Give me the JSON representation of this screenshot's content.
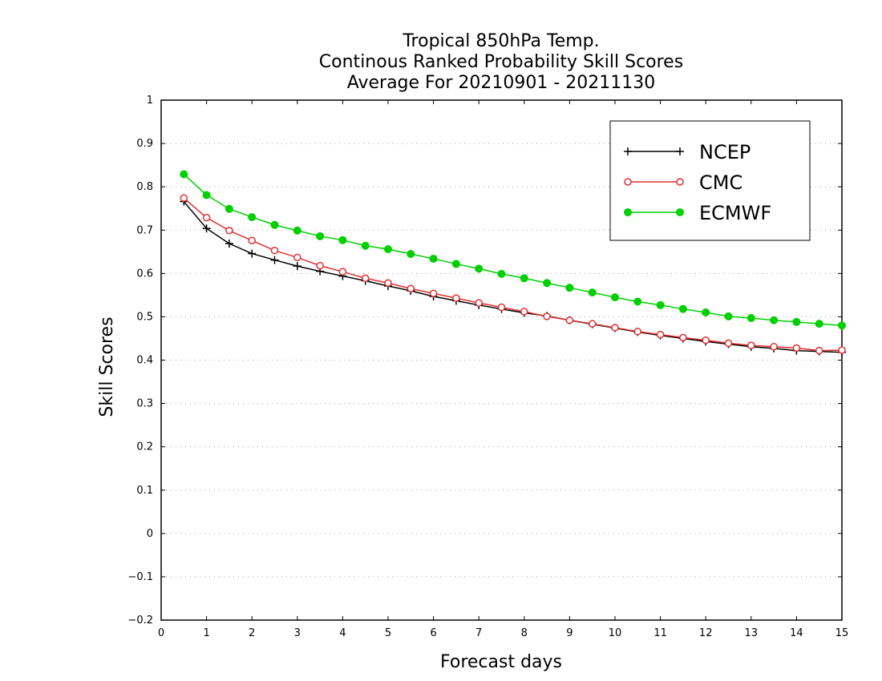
{
  "chart_data": {
    "type": "line",
    "title": [
      "Tropical 850hPa Temp.",
      "Continous Ranked Probability Skill Scores",
      "Average For 20210901 - 20211130"
    ],
    "xlabel": "Forecast days",
    "ylabel": "Skill Scores",
    "xlim": [
      0,
      15
    ],
    "ylim": [
      -0.2,
      1
    ],
    "xticks": [
      "0",
      "1",
      "2",
      "3",
      "4",
      "5",
      "6",
      "7",
      "8",
      "9",
      "10",
      "11",
      "12",
      "13",
      "14",
      "15"
    ],
    "yticks": [
      "−0.2",
      "−0.1",
      "0",
      "0.1",
      "0.2",
      "0.3",
      "0.4",
      "0.5",
      "0.6",
      "0.7",
      "0.8",
      "0.9",
      "1"
    ],
    "grid": "horizontal dotted",
    "legend_position": "top-right",
    "x": [
      0.5,
      1,
      1.5,
      2,
      2.5,
      3,
      3.5,
      4,
      4.5,
      5,
      5.5,
      6,
      6.5,
      7,
      7.5,
      8,
      8.5,
      9,
      9.5,
      10,
      10.5,
      11,
      11.5,
      12,
      12.5,
      13,
      13.5,
      14,
      14.5,
      15
    ],
    "series": [
      {
        "name": "NCEP",
        "color": "#000000",
        "marker": "plus",
        "values": [
          0.766,
          0.704,
          0.669,
          0.646,
          0.631,
          0.617,
          0.605,
          0.594,
          0.583,
          0.571,
          0.56,
          0.547,
          0.537,
          0.527,
          0.518,
          0.509,
          0.502,
          0.492,
          0.483,
          0.474,
          0.465,
          0.457,
          0.45,
          0.443,
          0.437,
          0.431,
          0.427,
          0.422,
          0.42,
          0.418
        ]
      },
      {
        "name": "CMC",
        "color": "#e03030",
        "marker": "open-circle",
        "values": [
          0.774,
          0.729,
          0.699,
          0.676,
          0.653,
          0.637,
          0.618,
          0.604,
          0.589,
          0.578,
          0.565,
          0.554,
          0.543,
          0.532,
          0.522,
          0.512,
          0.501,
          0.492,
          0.484,
          0.475,
          0.466,
          0.459,
          0.452,
          0.446,
          0.439,
          0.434,
          0.431,
          0.428,
          0.422,
          0.423
        ]
      },
      {
        "name": "ECMWF",
        "color": "#00d000",
        "marker": "filled-circle",
        "values": [
          0.829,
          0.781,
          0.749,
          0.73,
          0.712,
          0.699,
          0.686,
          0.677,
          0.664,
          0.656,
          0.645,
          0.634,
          0.622,
          0.611,
          0.599,
          0.589,
          0.578,
          0.567,
          0.556,
          0.545,
          0.535,
          0.527,
          0.518,
          0.51,
          0.501,
          0.497,
          0.492,
          0.488,
          0.484,
          0.48
        ]
      }
    ]
  }
}
